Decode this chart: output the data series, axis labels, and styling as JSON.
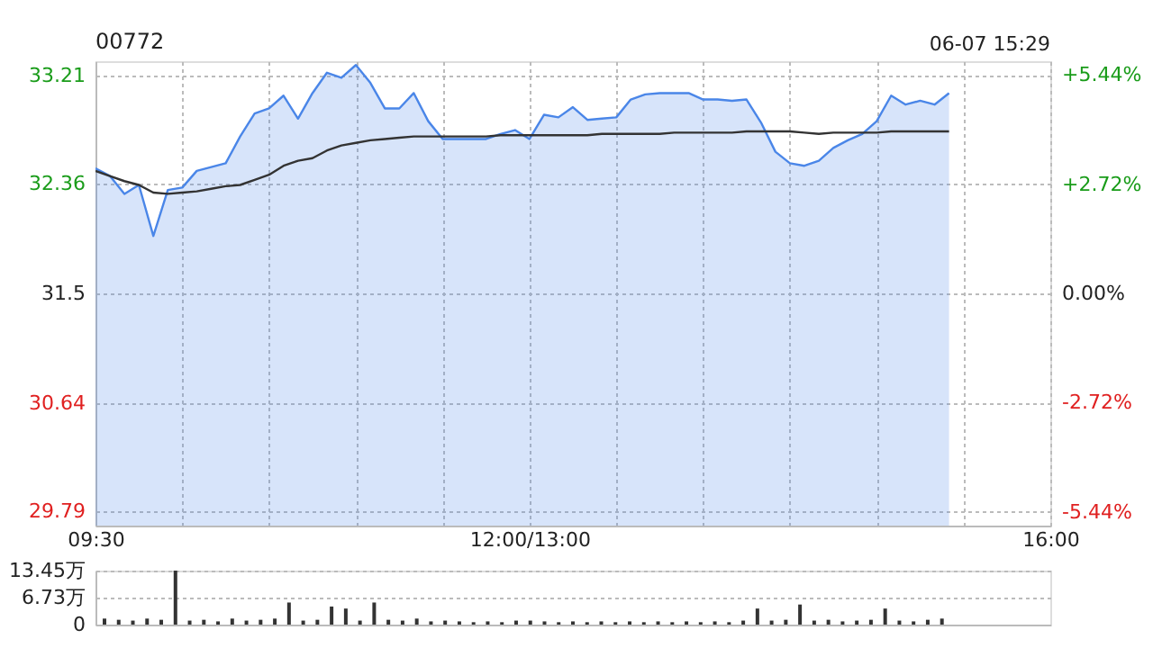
{
  "chart_data": [
    {
      "type": "area",
      "title": "00772",
      "annotations": [
        "06-07 15:29"
      ],
      "grid": true,
      "categories": [
        "09:30",
        null,
        null,
        null,
        null,
        null,
        null,
        null,
        null,
        null,
        null,
        null,
        null,
        null,
        null,
        null,
        null,
        null,
        null,
        null,
        null,
        null,
        null,
        null,
        null,
        null,
        null,
        null,
        null,
        null,
        "12:00/13:00",
        null,
        null,
        null,
        null,
        null,
        null,
        null,
        null,
        null,
        null,
        null,
        null,
        null,
        null,
        null,
        null,
        null,
        null,
        null,
        null,
        null,
        null,
        null,
        null,
        null,
        null,
        null,
        null,
        null,
        null,
        null,
        null,
        null,
        null,
        null,
        "16:00"
      ],
      "ylim": [
        29.68,
        33.32
      ],
      "yticks": [
        33.21,
        32.36,
        31.5,
        30.64,
        29.79
      ],
      "y2lim": [
        -5.78,
        5.78
      ],
      "y2ticks": [
        {
          "value": 5.44,
          "label": "+5.44%"
        },
        {
          "value": 2.72,
          "label": "+2.72%"
        },
        {
          "value": 0,
          "label": "0.00%"
        },
        {
          "value": -2.72,
          "label": "-2.72%"
        },
        {
          "value": -5.44,
          "label": "-5.44%"
        }
      ],
      "series": [
        {
          "type": "area",
          "color": "#4a86e8",
          "values": [
            32.48,
            32.42,
            32.28,
            32.35,
            31.95,
            32.31,
            32.33,
            32.46,
            32.49,
            32.52,
            32.73,
            32.91,
            32.95,
            33.05,
            32.87,
            33.07,
            33.23,
            33.19,
            33.29,
            33.15,
            32.95,
            32.95,
            33.07,
            32.85,
            32.71,
            32.71,
            32.71,
            32.71,
            32.75,
            32.78,
            32.71,
            32.9,
            32.88,
            32.96,
            32.86,
            32.87,
            32.88,
            33.02,
            33.06,
            33.07,
            33.07,
            33.07,
            33.02,
            33.02,
            33.01,
            33.02,
            32.84,
            32.61,
            32.52,
            32.5,
            32.54,
            32.64,
            32.7,
            32.75,
            32.85,
            33.05,
            32.98,
            33.01,
            32.98,
            33.07,
            null,
            null,
            null,
            null,
            null,
            null,
            null
          ]
        },
        {
          "type": "line",
          "color": "#333333",
          "values": [
            32.46,
            32.42,
            32.38,
            32.35,
            32.29,
            32.28,
            32.29,
            32.3,
            32.32,
            32.34,
            32.35,
            32.39,
            32.43,
            32.5,
            32.54,
            32.56,
            32.62,
            32.66,
            32.68,
            32.7,
            32.71,
            32.72,
            32.73,
            32.73,
            32.73,
            32.73,
            32.73,
            32.73,
            32.74,
            32.74,
            32.74,
            32.74,
            32.74,
            32.74,
            32.74,
            32.75,
            32.75,
            32.75,
            32.75,
            32.75,
            32.76,
            32.76,
            32.76,
            32.76,
            32.76,
            32.77,
            32.77,
            32.77,
            32.77,
            32.76,
            32.75,
            32.76,
            32.76,
            32.76,
            32.76,
            32.77,
            32.77,
            32.77,
            32.77,
            32.77,
            null,
            null,
            null,
            null,
            null,
            null,
            null
          ]
        }
      ]
    },
    {
      "type": "bar",
      "tick_labels": "y",
      "grid": "y",
      "categories": [
        null,
        null,
        null,
        null,
        null,
        null,
        null,
        null,
        null,
        null,
        null,
        null,
        null,
        null,
        null,
        null,
        null,
        null,
        null,
        null,
        null,
        null,
        null,
        null,
        null,
        null,
        null,
        null,
        null,
        null,
        null,
        null,
        null,
        null,
        null,
        null,
        null,
        null,
        null,
        null,
        null,
        null,
        null,
        null,
        null,
        null,
        null,
        null,
        null,
        null,
        null,
        null,
        null,
        null,
        null,
        null,
        null,
        null,
        null,
        null,
        null,
        null,
        null,
        null,
        null,
        null,
        null
      ],
      "ylim": [
        0,
        13.45
      ],
      "yticks": [
        0,
        {
          "value": 6.73,
          "label": "6.73万"
        },
        {
          "value": 13.45,
          "label": "13.45万"
        }
      ],
      "series": [
        {
          "color": "#333333",
          "values": [
            1.5,
            1.2,
            1.0,
            1.5,
            1.2,
            13.45,
            1.0,
            1.2,
            0.8,
            1.5,
            1.0,
            1.2,
            1.5,
            5.5,
            1.0,
            1.2,
            4.5,
            4.0,
            1.0,
            5.5,
            1.2,
            1.0,
            1.5,
            0.8,
            1.0,
            0.8,
            0.6,
            0.8,
            0.6,
            1.0,
            1.0,
            0.8,
            0.6,
            0.8,
            0.6,
            0.8,
            0.6,
            0.8,
            0.6,
            0.8,
            0.6,
            0.8,
            0.6,
            0.8,
            0.6,
            1.0,
            4.0,
            1.0,
            1.2,
            5.0,
            1.0,
            1.2,
            0.8,
            1.0,
            1.2,
            4.0,
            1.0,
            0.8,
            1.2,
            1.5,
            null,
            null,
            null,
            null,
            null,
            null,
            null
          ]
        }
      ]
    }
  ]
}
